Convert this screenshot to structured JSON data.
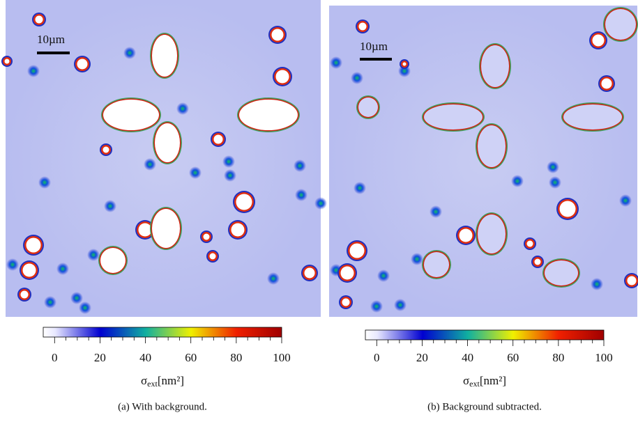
{
  "panels": [
    {
      "caption": "(a) With background.",
      "scale_bar": "10µm",
      "colorbar": {
        "range": [
          -5,
          100
        ],
        "ticks": [
          0,
          20,
          40,
          60,
          80,
          100
        ],
        "minor_ticks": [
          5,
          10,
          15,
          25,
          30,
          35,
          45,
          50,
          55,
          65,
          70,
          75,
          85,
          90,
          95
        ],
        "label": {
          "symbol": "σ",
          "subscript": "ext",
          "unit": "[nm²]"
        }
      }
    },
    {
      "caption": "(b) Background subtracted.",
      "scale_bar": "10µm",
      "colorbar": {
        "range": [
          -5,
          100
        ],
        "ticks": [
          0,
          20,
          40,
          60,
          80,
          100
        ],
        "minor_ticks": [
          5,
          10,
          15,
          25,
          30,
          35,
          45,
          50,
          55,
          65,
          70,
          75,
          85,
          90,
          95
        ],
        "label": {
          "symbol": "σ",
          "subscript": "ext",
          "unit": "[nm²]"
        }
      }
    }
  ]
}
